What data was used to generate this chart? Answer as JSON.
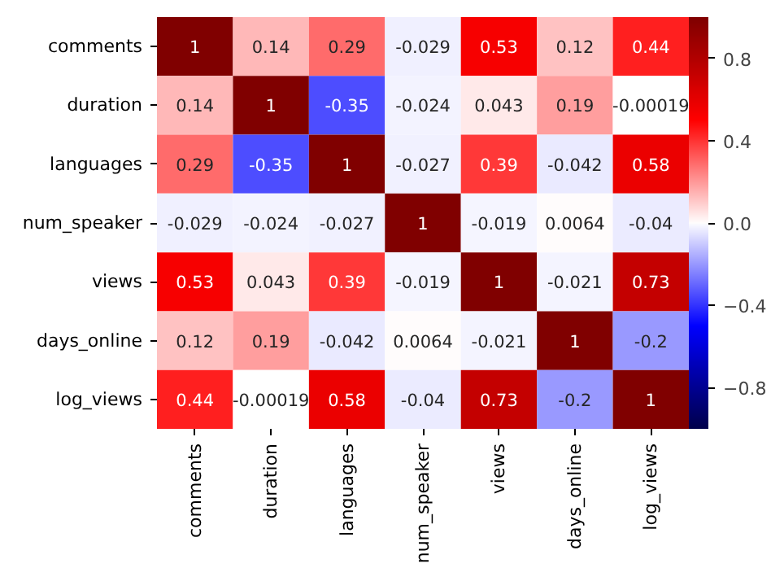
{
  "chart_data": {
    "type": "heatmap",
    "categories": [
      "comments",
      "duration",
      "languages",
      "num_speaker",
      "views",
      "days_online",
      "log_views"
    ],
    "y_categories": [
      "comments",
      "duration",
      "languages",
      "num_speaker",
      "views",
      "days_online",
      "log_views"
    ],
    "cells": [
      [
        1,
        0.14,
        0.29,
        -0.029,
        0.53,
        0.12,
        0.44
      ],
      [
        0.14,
        1,
        -0.35,
        -0.024,
        0.043,
        0.19,
        -0.00019
      ],
      [
        0.29,
        -0.35,
        1,
        -0.027,
        0.39,
        -0.042,
        0.58
      ],
      [
        -0.029,
        -0.024,
        -0.027,
        1,
        -0.019,
        0.0064,
        -0.04
      ],
      [
        0.53,
        0.043,
        0.39,
        -0.019,
        1,
        -0.021,
        0.73
      ],
      [
        0.12,
        0.19,
        -0.042,
        0.0064,
        -0.021,
        1,
        -0.2
      ],
      [
        0.44,
        -0.00019,
        0.58,
        -0.04,
        0.73,
        -0.2,
        1
      ]
    ],
    "data_labels": true,
    "clim": [
      -1,
      1
    ],
    "cticks": [
      {
        "value": -0.8,
        "label": "−0.8"
      },
      {
        "value": -0.4,
        "label": "−0.4"
      },
      {
        "value": 0,
        "label": "0.0"
      },
      0.4,
      0.8
    ]
  }
}
